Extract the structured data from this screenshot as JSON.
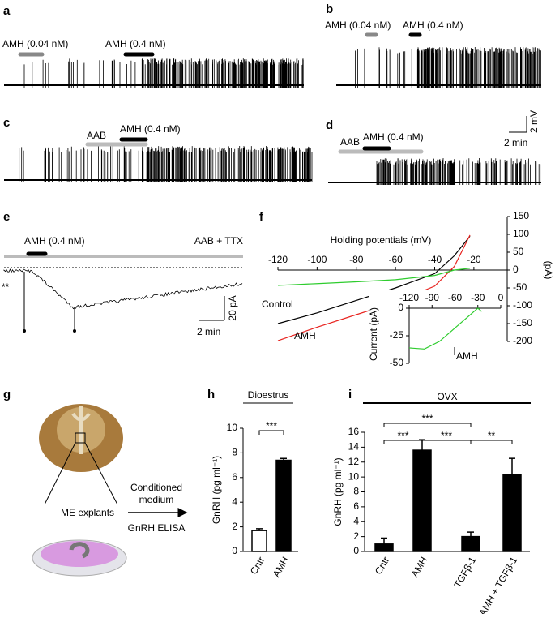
{
  "panels": {
    "a": {
      "label": "a",
      "annotations": [
        "AMH (0.04 nM)",
        "AMH (0.4 nM)"
      ]
    },
    "b": {
      "label": "b",
      "annotations": [
        "AMH (0.04 nM)",
        "AMH (0.4 nM)"
      ]
    },
    "c": {
      "label": "c",
      "annotations": [
        "AAB",
        "AMH (0.4 nM)"
      ]
    },
    "d": {
      "label": "d",
      "annotations": [
        "AAB",
        "AMH (0.4 nM)"
      ],
      "scale": [
        "2 mV",
        "2 min"
      ]
    },
    "e": {
      "label": "e",
      "annotations": [
        "AMH (0.4 nM)",
        "AAB + TTX",
        "**"
      ],
      "scale": [
        "20 pA",
        "2 min"
      ]
    },
    "f": {
      "label": "f"
    },
    "g": {
      "label": "g",
      "texts": [
        "ME explants",
        "Conditioned",
        "medium",
        "GnRH ELISA"
      ]
    },
    "h": {
      "label": "h"
    },
    "i": {
      "label": "i"
    }
  },
  "chart_data": [
    {
      "type": "line",
      "xlabel": "Holding potentials (mV)",
      "ylabel": "(pA)",
      "x": [
        -120,
        -100,
        -80,
        -60,
        -40,
        -30,
        -22
      ],
      "xlim": [
        -120,
        -3
      ],
      "xticks": [
        -120,
        -100,
        -80,
        -60,
        -40,
        -20
      ],
      "ylim": [
        -200,
        150
      ],
      "yticks": [
        150,
        100,
        50,
        0,
        -50,
        -100,
        -150,
        -200
      ],
      "series": [
        {
          "name": "Control",
          "color": "#000000",
          "values": [
            -150,
            -120,
            -85,
            -50,
            -10,
            40,
            95
          ]
        },
        {
          "name": "AMH",
          "color": "#e8231f",
          "values": [
            -198,
            -160,
            -125,
            -90,
            -45,
            10,
            98
          ]
        },
        {
          "color": "#2ecc2e",
          "values": [
            -43,
            -38,
            -33,
            -27,
            -15,
            0,
            5
          ]
        }
      ]
    },
    {
      "type": "line",
      "ylabel": "Current (pA)",
      "annotation": "AMH",
      "x": [
        -120,
        -100,
        -80,
        -60,
        -40,
        -30,
        -25
      ],
      "xlim": [
        -120,
        0
      ],
      "xticks": [
        -120,
        -90,
        -60,
        -30,
        0
      ],
      "ylim": [
        -50,
        0
      ],
      "yticks": [
        0,
        -25,
        -50
      ],
      "series": [
        {
          "color": "#2ecc2e",
          "values": [
            -36,
            -37,
            -30,
            -18,
            -6,
            0,
            -3
          ]
        }
      ]
    },
    {
      "type": "bar",
      "title": "Dioestrus",
      "ylabel": "GnRH (pg ml⁻¹)",
      "categories": [
        "Cntr",
        "AMH"
      ],
      "values": [
        1.7,
        7.4
      ],
      "errors": [
        0.15,
        0.15
      ],
      "colors": [
        "#ffffff",
        "#000000"
      ],
      "ylim": [
        0,
        10
      ],
      "yticks": [
        0,
        2,
        4,
        6,
        8,
        10
      ],
      "annotations": [
        "***"
      ]
    },
    {
      "type": "bar",
      "title": "OVX",
      "ylabel": "GnRH (pg ml⁻¹)",
      "categories": [
        "Cntr",
        "AMH",
        "TGFβ-1",
        "AMH + TGFβ-1"
      ],
      "values": [
        1.0,
        13.6,
        2.0,
        10.3
      ],
      "errors": [
        0.8,
        1.4,
        0.6,
        2.2
      ],
      "colors": [
        "#000000",
        "#000000",
        "#000000",
        "#000000"
      ],
      "ylim": [
        0,
        16
      ],
      "yticks": [
        0,
        2,
        4,
        6,
        8,
        10,
        12,
        14,
        16
      ],
      "annotations": [
        "***",
        "***",
        "***",
        "**"
      ]
    }
  ]
}
